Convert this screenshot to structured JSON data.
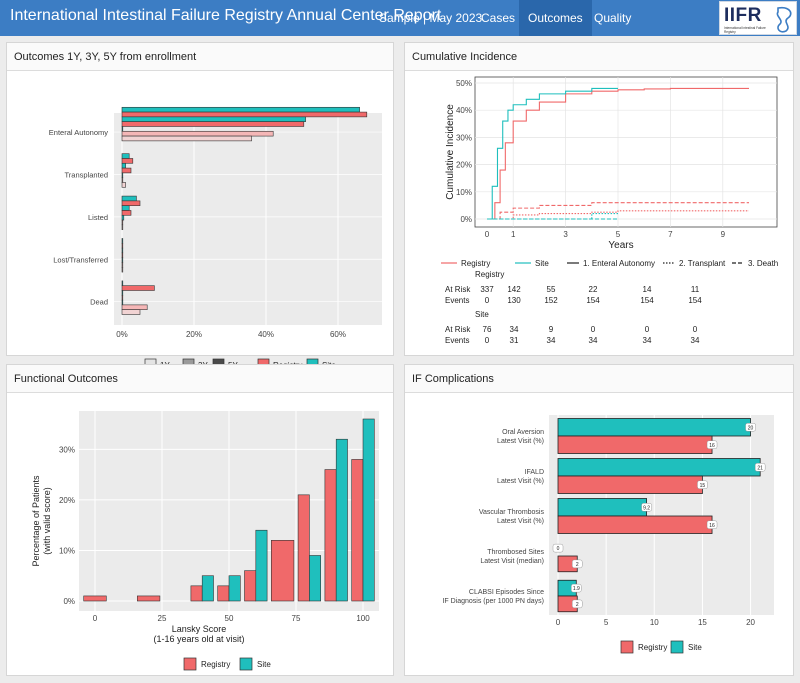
{
  "header": {
    "title": "International Intestinal Failure Registry Annual Center Report",
    "nav": [
      {
        "label": "Sample | May 2023"
      },
      {
        "label": "Cases"
      },
      {
        "label": "Outcomes"
      },
      {
        "label": "Quality"
      }
    ],
    "logo_text": "IIFR",
    "logo_subtitle": "International Intestinal Failure Registry"
  },
  "colors": {
    "registry": "#f0696a",
    "site": "#1fbfbd",
    "nav": "#3c7dc4",
    "panel_bg": "#ebebeb"
  },
  "panels": {
    "outcomes": {
      "title": "Outcomes 1Y, 3Y, 5Y from enrollment"
    },
    "cumulative": {
      "title": "Cumulative Incidence"
    },
    "functional": {
      "title": "Functional Outcomes"
    },
    "ifcomp": {
      "title": "IF Complications"
    }
  },
  "chart_data": [
    {
      "id": "outcomes",
      "type": "bar",
      "orientation": "horizontal",
      "categories": [
        "Enteral Autonomy",
        "Transplanted",
        "Listed",
        "Lost/Transferred",
        "Dead"
      ],
      "series": [
        {
          "name": "Site 1Y",
          "values": [
            66,
            2,
            4,
            0,
            0
          ]
        },
        {
          "name": "Registry 1Y",
          "values": [
            68,
            3,
            5,
            0,
            9
          ]
        },
        {
          "name": "Site 3Y",
          "values": [
            51,
            1,
            2,
            0,
            0
          ]
        },
        {
          "name": "Registry 3Y",
          "values": [
            50.5,
            2.5,
            2.5,
            0,
            0
          ]
        },
        {
          "name": "Site 5Y",
          "values": [
            0,
            0,
            0.5,
            0,
            0
          ]
        },
        {
          "name": "Registry 5Y",
          "values": [
            42,
            0,
            0,
            0,
            7
          ]
        },
        {
          "name": "Registry 5Y late",
          "values": [
            36,
            1,
            0,
            0,
            5
          ]
        }
      ],
      "xlim": [
        0,
        70
      ],
      "x_ticks": [
        "0%",
        "20%",
        "40%",
        "60%"
      ],
      "legend": [
        "1Y",
        "3Y",
        "5Y",
        "Registry",
        "Site"
      ]
    },
    {
      "id": "cumulative",
      "type": "line",
      "ylabel": "Cumulative Incidence",
      "xlabel": "Years",
      "ylim": [
        0,
        50
      ],
      "xlim": [
        0,
        10
      ],
      "y_ticks": [
        "0%",
        "10%",
        "20%",
        "30%",
        "40%",
        "50%"
      ],
      "x_ticks": [
        "0",
        "1",
        "3",
        "5",
        "7",
        "9"
      ],
      "series": [
        {
          "name": "Registry Enteral Autonomy",
          "x": [
            0,
            0.3,
            0.5,
            0.7,
            1,
            1.5,
            2,
            3,
            4,
            5,
            6,
            7,
            8,
            9,
            10
          ],
          "y": [
            0,
            6,
            18,
            28,
            36,
            40,
            43,
            46,
            47,
            47.5,
            47.8,
            48,
            48,
            48,
            48
          ]
        },
        {
          "name": "Site Enteral Autonomy",
          "x": [
            0,
            0.2,
            0.4,
            0.6,
            0.8,
            1,
            1.5,
            2,
            3,
            4,
            5
          ],
          "y": [
            0,
            12,
            26,
            36,
            40,
            42,
            44,
            46,
            47,
            48,
            48
          ]
        },
        {
          "name": "Registry Transplant",
          "x": [
            0,
            1,
            2,
            3,
            4,
            5,
            6,
            7,
            8,
            9,
            10
          ],
          "y": [
            0,
            1.5,
            2,
            2,
            2.5,
            3,
            3,
            3,
            3,
            3,
            3
          ]
        },
        {
          "name": "Site Transplant",
          "x": [
            0,
            1,
            2,
            3,
            4,
            5
          ],
          "y": [
            0,
            0,
            0,
            0,
            2,
            2
          ]
        },
        {
          "name": "Registry Death",
          "x": [
            0,
            0.5,
            1,
            2,
            3,
            4,
            5,
            6,
            7,
            8,
            9,
            10
          ],
          "y": [
            0,
            2.5,
            4,
            5,
            5,
            6,
            6,
            6,
            6,
            6,
            6,
            6
          ]
        },
        {
          "name": "Site Death",
          "x": [
            0,
            1,
            2,
            3,
            4,
            5
          ],
          "y": [
            0,
            0,
            0,
            0,
            0,
            0
          ]
        }
      ],
      "legend": [
        "Registry",
        "Site",
        "1. Enteral Autonomy",
        "2. Transplant",
        "3. Death"
      ],
      "at_risk_table": {
        "groups": [
          {
            "name": "Registry",
            "rows": [
              {
                "label": "At Risk",
                "values": [
                  "337",
                  "142",
                  "55",
                  "22",
                  "14",
                  "11"
                ]
              },
              {
                "label": "Events",
                "values": [
                  "0",
                  "130",
                  "152",
                  "154",
                  "154",
                  "154"
                ]
              }
            ]
          },
          {
            "name": "Site",
            "rows": [
              {
                "label": "At Risk",
                "values": [
                  "76",
                  "34",
                  "9",
                  "0",
                  "0",
                  "0"
                ]
              },
              {
                "label": "Events",
                "values": [
                  "0",
                  "31",
                  "34",
                  "34",
                  "34",
                  "34"
                ]
              }
            ]
          }
        ]
      }
    },
    {
      "id": "functional",
      "type": "bar",
      "xlabel": "Lansky Score\n(1-16 years old at visit)",
      "ylabel": "Percentage of Patients\n(with valid score)",
      "ylim": [
        0,
        36
      ],
      "y_ticks": [
        "0%",
        "10%",
        "20%",
        "30%"
      ],
      "x_ticks": [
        "0",
        "25",
        "50",
        "75",
        "100"
      ],
      "categories": [
        0,
        10,
        20,
        30,
        40,
        50,
        60,
        70,
        80,
        90,
        100
      ],
      "series": [
        {
          "name": "Registry",
          "values": [
            1,
            0,
            1,
            0,
            3,
            3,
            6,
            12,
            21,
            26,
            28
          ]
        },
        {
          "name": "Site",
          "values": [
            0,
            0,
            0,
            0,
            5,
            5,
            14,
            0,
            9,
            32,
            36
          ]
        }
      ],
      "legend": [
        "Registry",
        "Site"
      ]
    },
    {
      "id": "ifcomp",
      "type": "bar",
      "orientation": "horizontal",
      "categories": [
        "Oral Aversion\nLatest Visit (%)",
        "IFALD\nLatest Visit (%)",
        "Vascular Thrombosis\nLatest Visit (%)",
        "Thrombosed Sites\nLatest Visit (median)",
        "CLABSI Episodes Since\nIF Diagnosis (per 1000 PN days)"
      ],
      "series": [
        {
          "name": "Site",
          "values": [
            20,
            21,
            9.2,
            0,
            1.9
          ],
          "labels": [
            "20",
            "21",
            "9.2",
            "0",
            "1.9"
          ]
        },
        {
          "name": "Registry",
          "values": [
            16,
            15,
            16,
            2,
            2
          ],
          "labels": [
            "16",
            "15",
            "16",
            "2",
            "2"
          ]
        }
      ],
      "xlim": [
        0,
        21.5
      ],
      "x_ticks": [
        "0",
        "5",
        "10",
        "15",
        "20"
      ],
      "legend": [
        "Registry",
        "Site"
      ]
    }
  ]
}
